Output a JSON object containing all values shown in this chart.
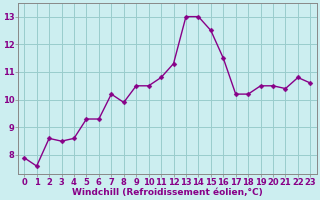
{
  "x": [
    0,
    1,
    2,
    3,
    4,
    5,
    6,
    7,
    8,
    9,
    10,
    11,
    12,
    13,
    14,
    15,
    16,
    17,
    18,
    19,
    20,
    21,
    22,
    23
  ],
  "y": [
    7.9,
    7.6,
    8.6,
    8.5,
    8.6,
    9.3,
    9.3,
    10.2,
    9.9,
    10.5,
    10.5,
    10.8,
    11.3,
    13.0,
    13.0,
    12.5,
    11.5,
    10.2,
    10.2,
    10.5,
    10.5,
    10.4,
    10.8,
    10.6
  ],
  "line_color": "#880088",
  "marker_color": "#880088",
  "bg_color": "#cceef0",
  "grid_color": "#99cccc",
  "spine_color": "#888888",
  "xlabel": "Windchill (Refroidissement éolien,°C)",
  "xlim": [
    -0.5,
    23.5
  ],
  "ylim": [
    7.3,
    13.5
  ],
  "yticks": [
    8,
    9,
    10,
    11,
    12,
    13
  ],
  "xticks": [
    0,
    1,
    2,
    3,
    4,
    5,
    6,
    7,
    8,
    9,
    10,
    11,
    12,
    13,
    14,
    15,
    16,
    17,
    18,
    19,
    20,
    21,
    22,
    23
  ],
  "xlabel_fontsize": 6.5,
  "tick_fontsize": 6.0,
  "line_width": 1.0,
  "marker_size": 2.5
}
